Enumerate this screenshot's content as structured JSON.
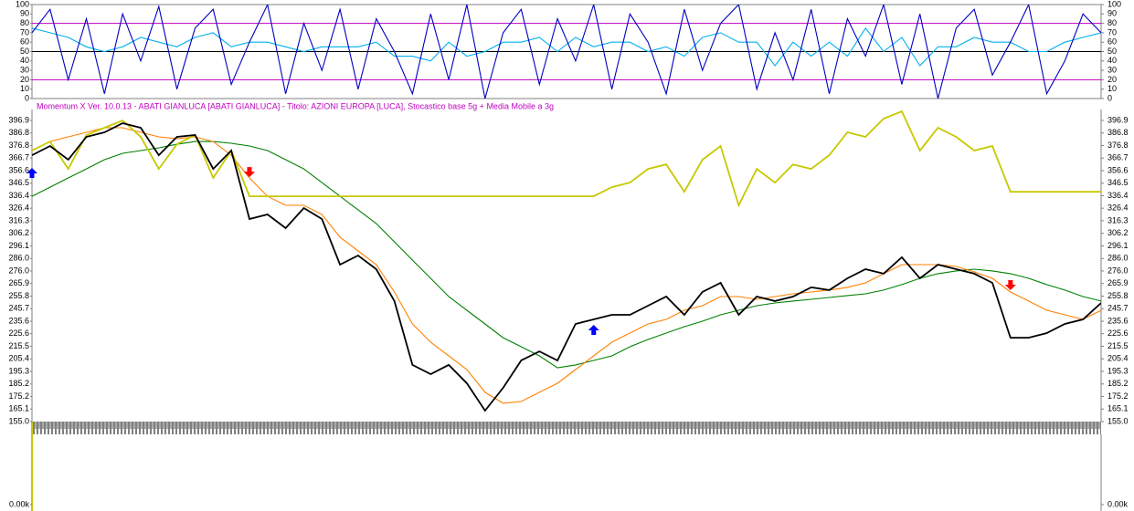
{
  "chart_data": [
    {
      "type": "line",
      "ylim": [
        0,
        100
      ],
      "yticks": [
        0,
        10,
        20,
        30,
        40,
        50,
        60,
        70,
        80,
        90,
        100
      ],
      "ref_lines": [
        {
          "value": 80,
          "color": "#c000c0"
        },
        {
          "value": 50,
          "color": "#000000"
        },
        {
          "value": 20,
          "color": "#c000c0"
        }
      ],
      "series": [
        {
          "color": "#00b0f0",
          "values": [
            75,
            70,
            65,
            55,
            50,
            55,
            65,
            60,
            55,
            65,
            70,
            55,
            60,
            60,
            55,
            50,
            55,
            55,
            55,
            60,
            45,
            45,
            40,
            60,
            45,
            50,
            60,
            60,
            65,
            50,
            65,
            55,
            60,
            60,
            50,
            55,
            45,
            65,
            70,
            60,
            60,
            35,
            60,
            45,
            60,
            45,
            75,
            50,
            65,
            35,
            55,
            55,
            65,
            60,
            60,
            50,
            50,
            60,
            65,
            70
          ]
        },
        {
          "color": "#0000c0",
          "values": [
            70,
            95,
            20,
            85,
            5,
            90,
            40,
            98,
            10,
            75,
            95,
            15,
            60,
            100,
            5,
            80,
            30,
            95,
            10,
            85,
            50,
            5,
            90,
            20,
            100,
            0,
            70,
            95,
            15,
            85,
            40,
            100,
            10,
            90,
            60,
            5,
            95,
            30,
            80,
            100,
            10,
            70,
            20,
            95,
            5,
            85,
            45,
            100,
            15,
            90,
            0,
            75,
            95,
            25,
            60,
            100,
            5,
            40,
            90,
            70
          ]
        }
      ]
    },
    {
      "type": "line",
      "subtitle": "Momentum X  Ver. 10.0.13  -  ABATI GIANLUCA  [ABATI GIANLUCA] - Titolo: AZIONI EUROPA  [LUCA],    Stocastico base 5g + Media Mobile a 3g",
      "ylim": [
        155.0,
        396.9
      ],
      "yticks": [
        {
          "value": 155.0,
          "label": "155.0"
        },
        165.1,
        175.2,
        185.2,
        195.3,
        205.4,
        215.5,
        225.6,
        235.6,
        245.7,
        255.8,
        265.9,
        {
          "value": 276.0,
          "label": "276.0"
        },
        {
          "value": 286.0,
          "label": "286.0"
        },
        296.1,
        306.2,
        316.3,
        326.4,
        336.4,
        346.5,
        356.6,
        366.7,
        376.8,
        386.8,
        396.9
      ],
      "series": [
        {
          "color": "#008000",
          "values": [
            336.0,
            343.3,
            350.7,
            358.0,
            365.4,
            370.5,
            372.7,
            374.9,
            377.8,
            380.0,
            380.0,
            378.6,
            376.4,
            372.7,
            365.4,
            358.0,
            347.0,
            336.0,
            325.1,
            314.1,
            299.4,
            284.7,
            270.1,
            255.4,
            244.4,
            233.4,
            222.4,
            215.1,
            207.8,
            198.2,
            200.5,
            204.1,
            207.8,
            215.1,
            221.0,
            226.1,
            231.2,
            235.6,
            240.8,
            244.4,
            248.1,
            250.3,
            251.8,
            253.2,
            254.7,
            256.2,
            257.6,
            260.6,
            265.0,
            270.1,
            273.8,
            276.0,
            277.4,
            276.0,
            273.8,
            270.1,
            265.0,
            260.6,
            255.4,
            251.8
          ]
        },
        {
          "color": "#ff8000",
          "values": [
            372.7,
            380.0,
            383.7,
            387.4,
            391.0,
            391.0,
            387.4,
            383.7,
            382.2,
            383.7,
            380.0,
            369.0,
            350.7,
            336.0,
            328.7,
            328.7,
            321.4,
            303.1,
            292.1,
            281.1,
            259.1,
            233.4,
            218.8,
            207.8,
            196.8,
            178.5,
            169.7,
            171.1,
            178.5,
            185.8,
            196.8,
            207.8,
            218.8,
            226.1,
            233.4,
            237.1,
            244.4,
            248.1,
            255.4,
            255.4,
            253.2,
            255.4,
            257.6,
            259.1,
            260.6,
            262.8,
            266.4,
            273.8,
            281.1,
            281.1,
            281.1,
            279.6,
            275.2,
            270.1,
            259.1,
            251.8,
            244.4,
            240.8,
            237.1,
            244.4
          ]
        },
        {
          "color": "#c8c800",
          "values": [
            372.7,
            380.0,
            358.0,
            385.2,
            391.0,
            396.9,
            383.7,
            358.0,
            377.8,
            385.2,
            350.7,
            372.7,
            336.0,
            336.0,
            336.0,
            336.0,
            336.0,
            336.0,
            336.0,
            336.0,
            336.0,
            336.0,
            336.0,
            336.0,
            336.0,
            336.0,
            336.0,
            336.0,
            336.0,
            336.0,
            336.0,
            336.0,
            343.3,
            347.0,
            358.0,
            361.6,
            339.6,
            365.4,
            376.4,
            328.7,
            358.0,
            347.0,
            361.6,
            358.0,
            369.0,
            387.4,
            383.7,
            398.4,
            404.2,
            372.7,
            391.0,
            383.7,
            372.7,
            376.4,
            339.6,
            339.6,
            339.6,
            339.6,
            339.6,
            339.6
          ]
        },
        {
          "color": "#000000",
          "values": [
            369.0,
            376.4,
            365.4,
            383.7,
            387.4,
            394.7,
            391.0,
            369.0,
            383.7,
            385.2,
            358.0,
            372.7,
            317.7,
            321.4,
            310.4,
            326.5,
            317.7,
            281.1,
            288.4,
            277.4,
            251.8,
            200.5,
            193.1,
            200.5,
            185.8,
            163.8,
            182.1,
            204.1,
            211.4,
            204.1,
            233.4,
            237.1,
            240.8,
            240.8,
            248.1,
            255.4,
            240.8,
            259.1,
            266.4,
            240.8,
            255.4,
            251.8,
            255.4,
            262.8,
            260.6,
            270.1,
            277.4,
            273.8,
            287.0,
            270.1,
            281.1,
            277.4,
            273.8,
            266.4,
            222.4,
            222.4,
            226.1,
            233.4,
            237.1,
            250.3
          ]
        }
      ],
      "markers": [
        {
          "x": 0,
          "value": 354.4,
          "color": "#0000ff",
          "shape": "up"
        },
        {
          "x": 12,
          "value": 355.8,
          "color": "#ff0000",
          "shape": "down"
        },
        {
          "x": 31,
          "value": 228.3,
          "color": "#0000ff",
          "shape": "up"
        },
        {
          "x": 54,
          "value": 265.0,
          "color": "#ff0000",
          "shape": "down"
        }
      ]
    },
    {
      "type": "volume",
      "yticks": [
        {
          "value": 0,
          "label": "0.00k"
        }
      ]
    }
  ]
}
